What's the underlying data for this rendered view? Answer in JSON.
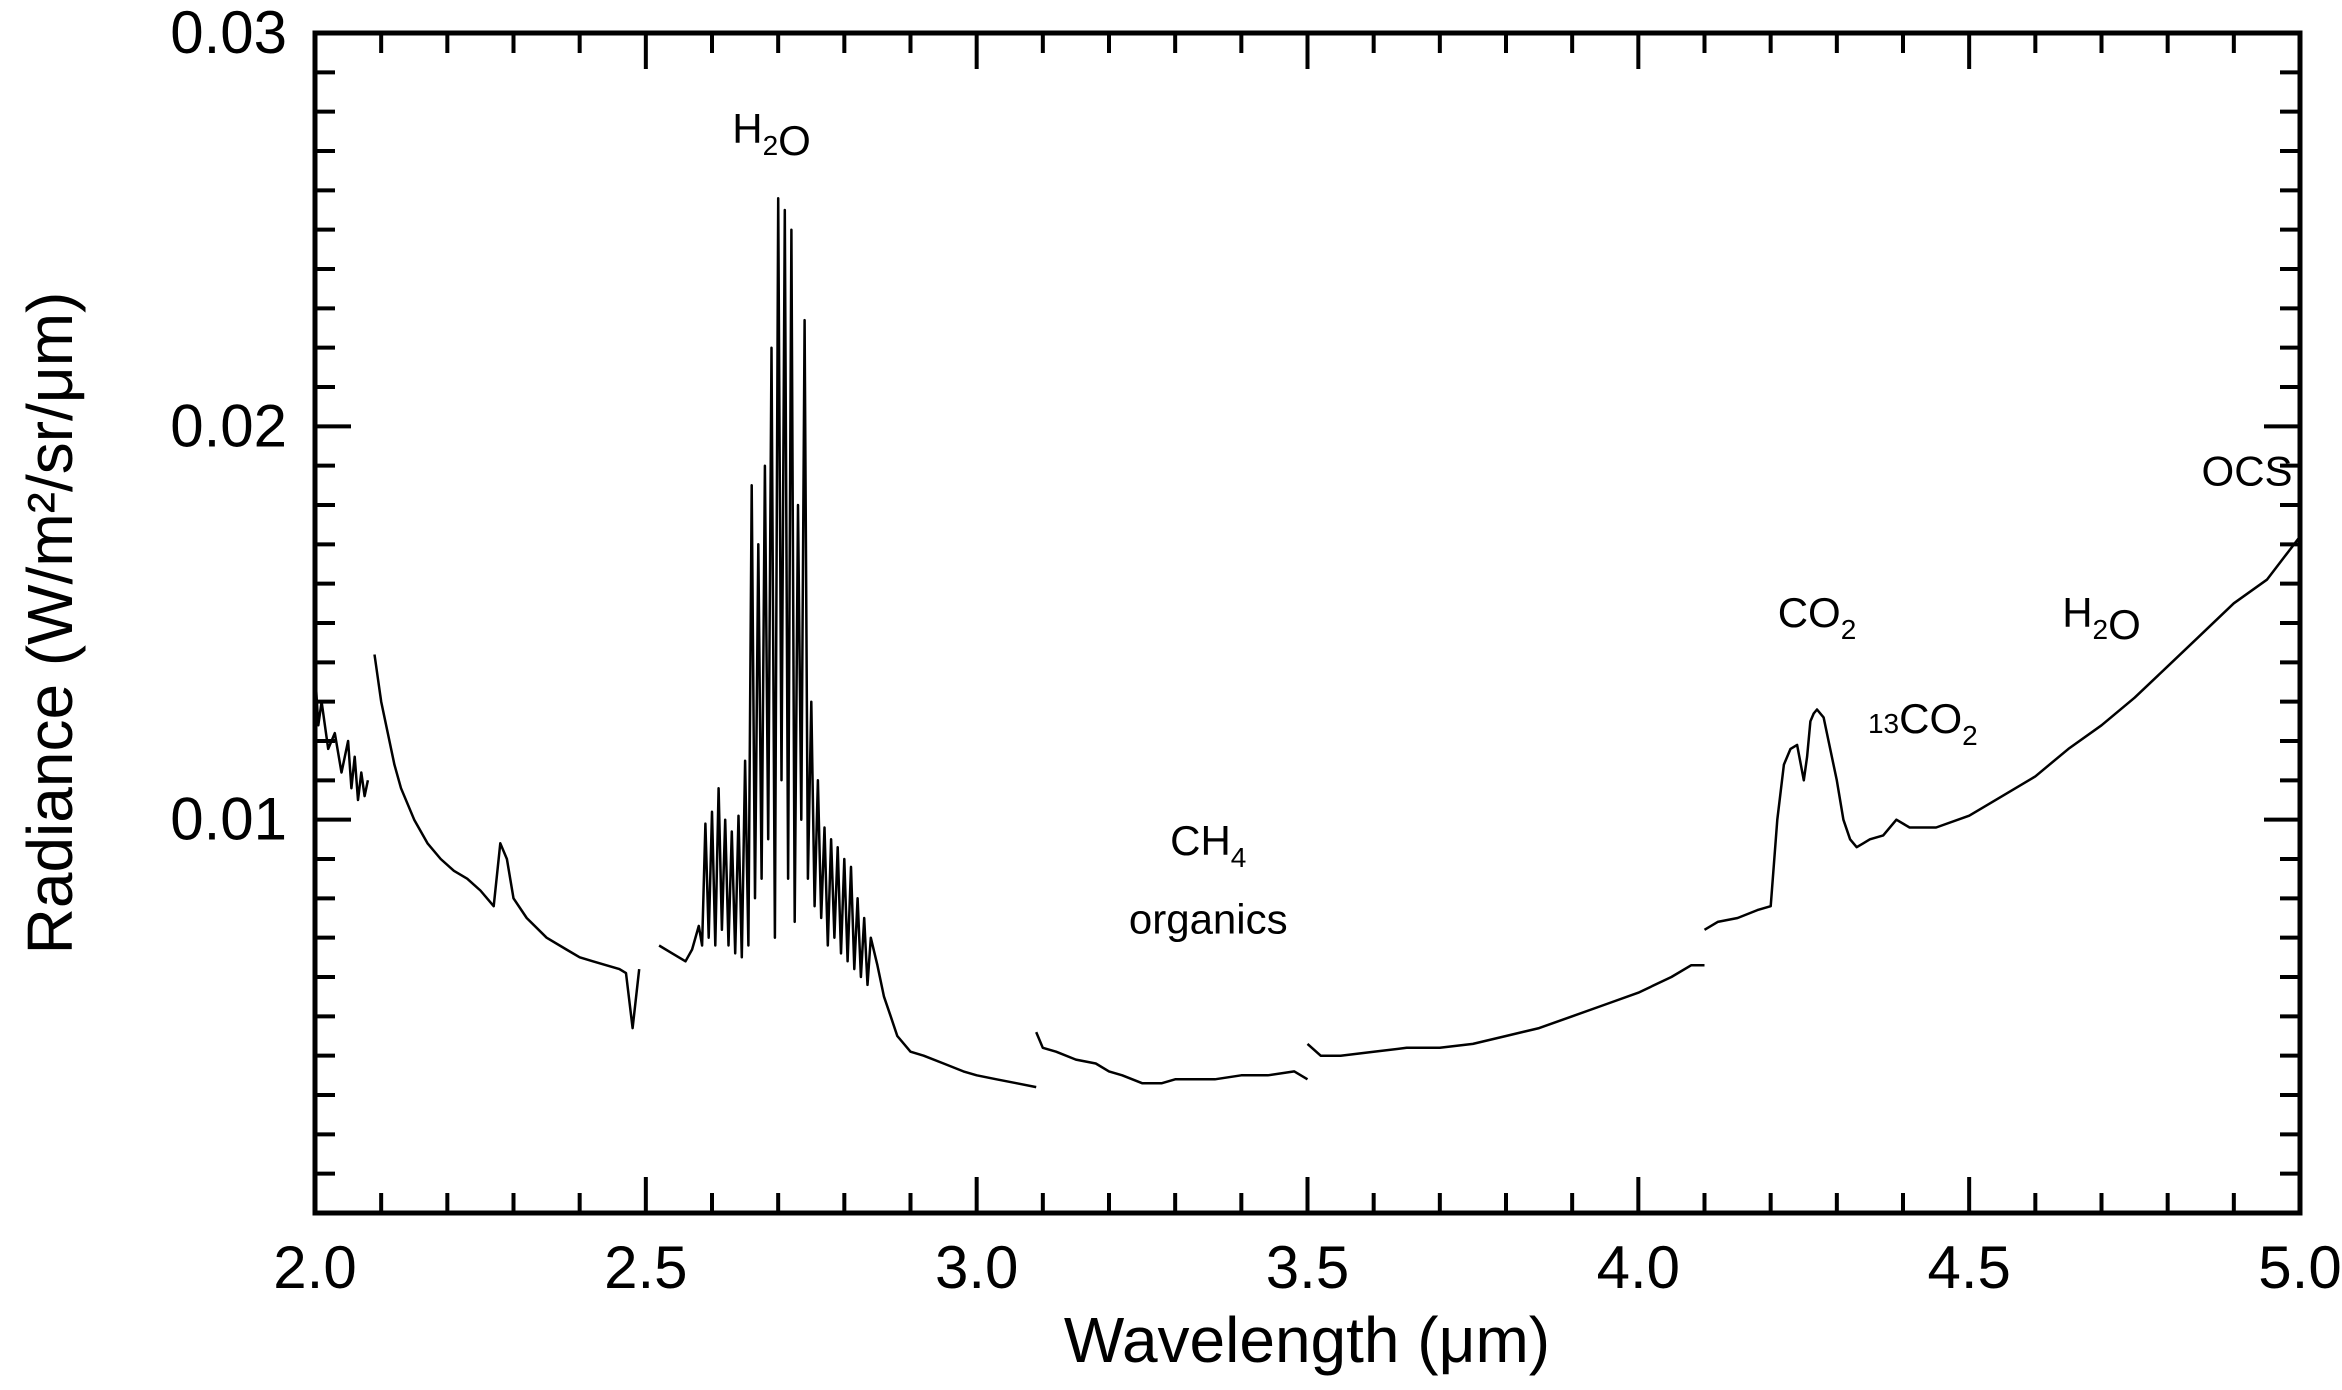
{
  "chart_data": {
    "type": "line",
    "xlabel": "Wavelength (μm)",
    "ylabel": "Radiance (W/m²/sr/μm)",
    "xlim": [
      2.0,
      5.0
    ],
    "ylim": [
      0.0,
      0.03
    ],
    "x_ticks": [
      "2.0",
      "2.5",
      "3.0",
      "3.5",
      "4.0",
      "4.5",
      "5.0"
    ],
    "y_ticks": [
      "0.01",
      "0.02",
      "0.03"
    ],
    "x_tick_values": [
      2.0,
      2.5,
      3.0,
      3.5,
      4.0,
      4.5,
      5.0
    ],
    "y_tick_values": [
      0.01,
      0.02,
      0.03
    ],
    "grid": false,
    "line_color": "#000000",
    "annotations": [
      {
        "name": "h2o-main",
        "parts": [
          [
            "H",
            ""
          ],
          [
            "2",
            "sub"
          ],
          [
            "O",
            ""
          ]
        ],
        "x": 2.69,
        "y": 0.0272
      },
      {
        "name": "ch4",
        "parts": [
          [
            "CH",
            ""
          ],
          [
            "4",
            "sub"
          ]
        ],
        "x": 3.35,
        "y": 0.0091
      },
      {
        "name": "organics",
        "parts": [
          [
            "organics",
            ""
          ]
        ],
        "x": 3.35,
        "y": 0.0071
      },
      {
        "name": "co2",
        "parts": [
          [
            "CO",
            ""
          ],
          [
            "2",
            "sub"
          ]
        ],
        "x": 4.27,
        "y": 0.0149
      },
      {
        "name": "13co2",
        "parts": [
          [
            "13",
            "sup"
          ],
          [
            "CO",
            ""
          ],
          [
            "2",
            "sub"
          ]
        ],
        "x": 4.43,
        "y": 0.0118
      },
      {
        "name": "h2o-right",
        "parts": [
          [
            "H",
            ""
          ],
          [
            "2",
            "sub"
          ],
          [
            "O",
            ""
          ]
        ],
        "x": 4.7,
        "y": 0.0149
      },
      {
        "name": "ocs",
        "parts": [
          [
            "OCS",
            ""
          ]
        ],
        "x": 4.92,
        "y": 0.0185
      }
    ],
    "segments": [
      {
        "x": [
          2.0,
          2.005,
          2.01,
          2.02,
          2.03,
          2.04,
          2.05,
          2.055,
          2.06,
          2.065,
          2.07,
          2.075,
          2.08
        ],
        "y": [
          0.0138,
          0.0124,
          0.013,
          0.0118,
          0.0122,
          0.0112,
          0.012,
          0.0108,
          0.0116,
          0.0105,
          0.0112,
          0.0106,
          0.011
        ]
      },
      {
        "x": [
          2.09,
          2.1,
          2.11,
          2.12,
          2.13,
          2.15,
          2.17,
          2.19,
          2.21,
          2.23,
          2.25,
          2.27,
          2.28,
          2.29,
          2.3,
          2.32,
          2.35,
          2.38,
          2.4,
          2.42,
          2.44,
          2.46,
          2.47,
          2.48,
          2.49
        ],
        "y": [
          0.0142,
          0.013,
          0.0122,
          0.0114,
          0.0108,
          0.01,
          0.0094,
          0.009,
          0.0087,
          0.0085,
          0.0082,
          0.0078,
          0.0094,
          0.009,
          0.008,
          0.0075,
          0.007,
          0.0067,
          0.0065,
          0.0064,
          0.0063,
          0.0062,
          0.0061,
          0.0047,
          0.0062
        ]
      },
      {
        "x": [
          2.52,
          2.54,
          2.56,
          2.57,
          2.58,
          2.585,
          2.59,
          2.595,
          2.6,
          2.605,
          2.61,
          2.615,
          2.62,
          2.625,
          2.63,
          2.635,
          2.64,
          2.645,
          2.65,
          2.655,
          2.66,
          2.665,
          2.67,
          2.675,
          2.68,
          2.685,
          2.69,
          2.695,
          2.7,
          2.705,
          2.71,
          2.715,
          2.72,
          2.725,
          2.73,
          2.735,
          2.74,
          2.745,
          2.75,
          2.755,
          2.76,
          2.765,
          2.77,
          2.775,
          2.78,
          2.785,
          2.79,
          2.795,
          2.8,
          2.805,
          2.81,
          2.815,
          2.82,
          2.825,
          2.83,
          2.835,
          2.84,
          2.85,
          2.86,
          2.87,
          2.88,
          2.9,
          2.92,
          2.95,
          2.98,
          3.0,
          3.03,
          3.06,
          3.09
        ],
        "y": [
          0.0068,
          0.0066,
          0.0064,
          0.0067,
          0.0073,
          0.0068,
          0.0099,
          0.007,
          0.0102,
          0.0068,
          0.0108,
          0.0072,
          0.01,
          0.0068,
          0.0097,
          0.0066,
          0.0101,
          0.0065,
          0.0115,
          0.0068,
          0.0185,
          0.008,
          0.017,
          0.0085,
          0.019,
          0.0095,
          0.022,
          0.007,
          0.0258,
          0.011,
          0.0255,
          0.0085,
          0.025,
          0.0074,
          0.018,
          0.01,
          0.0227,
          0.0085,
          0.013,
          0.0078,
          0.011,
          0.0075,
          0.0098,
          0.0068,
          0.0095,
          0.007,
          0.0093,
          0.0066,
          0.009,
          0.0064,
          0.0088,
          0.0062,
          0.008,
          0.006,
          0.0075,
          0.0058,
          0.007,
          0.0063,
          0.0055,
          0.005,
          0.0045,
          0.0041,
          0.004,
          0.0038,
          0.0036,
          0.0035,
          0.0034,
          0.0033,
          0.0032
        ]
      },
      {
        "x": [
          3.09,
          3.1,
          3.12,
          3.15,
          3.18,
          3.2,
          3.22,
          3.25,
          3.28,
          3.3,
          3.33,
          3.36,
          3.4,
          3.44,
          3.48,
          3.5
        ],
        "y": [
          0.0046,
          0.0042,
          0.0041,
          0.0039,
          0.0038,
          0.0036,
          0.0035,
          0.0033,
          0.0033,
          0.0034,
          0.0034,
          0.0034,
          0.0035,
          0.0035,
          0.0036,
          0.0034
        ]
      },
      {
        "x": [
          3.5,
          3.52,
          3.55,
          3.6,
          3.65,
          3.7,
          3.75,
          3.8,
          3.85,
          3.9,
          3.95,
          4.0,
          4.05,
          4.08,
          4.1
        ],
        "y": [
          0.0043,
          0.004,
          0.004,
          0.0041,
          0.0042,
          0.0042,
          0.0043,
          0.0045,
          0.0047,
          0.005,
          0.0053,
          0.0056,
          0.006,
          0.0063,
          0.0063
        ]
      },
      {
        "x": [
          4.1,
          4.12,
          4.15,
          4.18,
          4.2,
          4.21,
          4.22,
          4.23,
          4.24,
          4.25,
          4.255,
          4.26,
          4.265,
          4.27,
          4.28,
          4.29,
          4.3,
          4.31,
          4.32,
          4.33,
          4.34,
          4.35,
          4.37,
          4.39,
          4.41,
          4.45,
          4.5,
          4.55,
          4.6,
          4.65,
          4.7,
          4.75,
          4.8,
          4.85,
          4.9,
          4.95,
          5.0
        ],
        "y": [
          0.0072,
          0.0074,
          0.0075,
          0.0077,
          0.0078,
          0.01,
          0.0114,
          0.0118,
          0.0119,
          0.011,
          0.0116,
          0.0125,
          0.0127,
          0.0128,
          0.0126,
          0.0118,
          0.011,
          0.01,
          0.0095,
          0.0093,
          0.0094,
          0.0095,
          0.0096,
          0.01,
          0.0098,
          0.0098,
          0.0101,
          0.0106,
          0.0111,
          0.0118,
          0.0124,
          0.0131,
          0.0139,
          0.0147,
          0.0155,
          0.0161,
          0.0172
        ]
      }
    ]
  }
}
